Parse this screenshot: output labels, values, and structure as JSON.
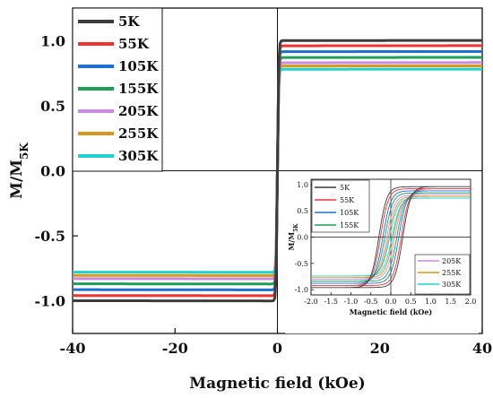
{
  "chart_data": [
    {
      "type": "line",
      "title": "",
      "xlabel": "Magnetic field (kOe)",
      "ylabel": "M/M",
      "ylabel_sub": "5K",
      "xlim": [
        -40,
        40
      ],
      "ylim": [
        -1.25,
        1.25
      ],
      "xticks": [
        -40,
        -20,
        0,
        20,
        40
      ],
      "xtick_labels": [
        "-40",
        "-20",
        "0",
        "20",
        "40"
      ],
      "yticks": [
        -1.0,
        -0.5,
        0.0,
        0.5,
        1.0
      ],
      "ytick_labels": [
        "-1.0",
        "-0.5",
        "0.0",
        "0.5",
        "1.0"
      ],
      "legend_position": "top-left",
      "series": [
        {
          "name": "5K",
          "color": "#3c3c3c",
          "saturation": 1.0
        },
        {
          "name": "55K",
          "color": "#ee3333",
          "saturation": 0.96
        },
        {
          "name": "105K",
          "color": "#1f6fd1",
          "saturation": 0.915
        },
        {
          "name": "155K",
          "color": "#1f9e58",
          "saturation": 0.87
        },
        {
          "name": "205K",
          "color": "#c88be0",
          "saturation": 0.83
        },
        {
          "name": "255K",
          "color": "#d4991e",
          "saturation": 0.805
        },
        {
          "name": "305K",
          "color": "#22d0d0",
          "saturation": 0.78
        }
      ]
    },
    {
      "type": "line",
      "title": "",
      "xlabel": "Magnetic field (kOe)",
      "ylabel": "M/M",
      "ylabel_sub": "5K",
      "xlim": [
        -2.0,
        2.0
      ],
      "ylim": [
        -1.1,
        1.1
      ],
      "xticks": [
        -2.0,
        -1.5,
        -1.0,
        -0.5,
        0.0,
        0.5,
        1.0,
        1.5,
        2.0
      ],
      "xtick_labels": [
        "-2.0",
        "-1.5",
        "-1.0",
        "-0.5",
        "0.0",
        "0.5",
        "1.0",
        "1.5",
        "2.0"
      ],
      "yticks": [
        -1.0,
        -0.5,
        0.0,
        0.5,
        1.0
      ],
      "ytick_labels": [
        "-1.0",
        "-0.5",
        "0.0",
        "0.5",
        "1.0"
      ],
      "legend_position": "top-left and bottom-right",
      "series": [
        {
          "name": "5K",
          "color": "#3c3c3c",
          "saturation": 0.96,
          "coercivity": 0.3
        },
        {
          "name": "55K",
          "color": "#ee3333",
          "saturation": 0.92,
          "coercivity": 0.26
        },
        {
          "name": "105K",
          "color": "#1f6fd1",
          "saturation": 0.88,
          "coercivity": 0.2
        },
        {
          "name": "155K",
          "color": "#1f9e58",
          "saturation": 0.84,
          "coercivity": 0.15
        },
        {
          "name": "205K",
          "color": "#c88be0",
          "saturation": 0.8,
          "coercivity": 0.1
        },
        {
          "name": "255K",
          "color": "#d4991e",
          "saturation": 0.77,
          "coercivity": 0.06
        },
        {
          "name": "305K",
          "color": "#22d0d0",
          "saturation": 0.74,
          "coercivity": 0.03
        }
      ]
    }
  ]
}
